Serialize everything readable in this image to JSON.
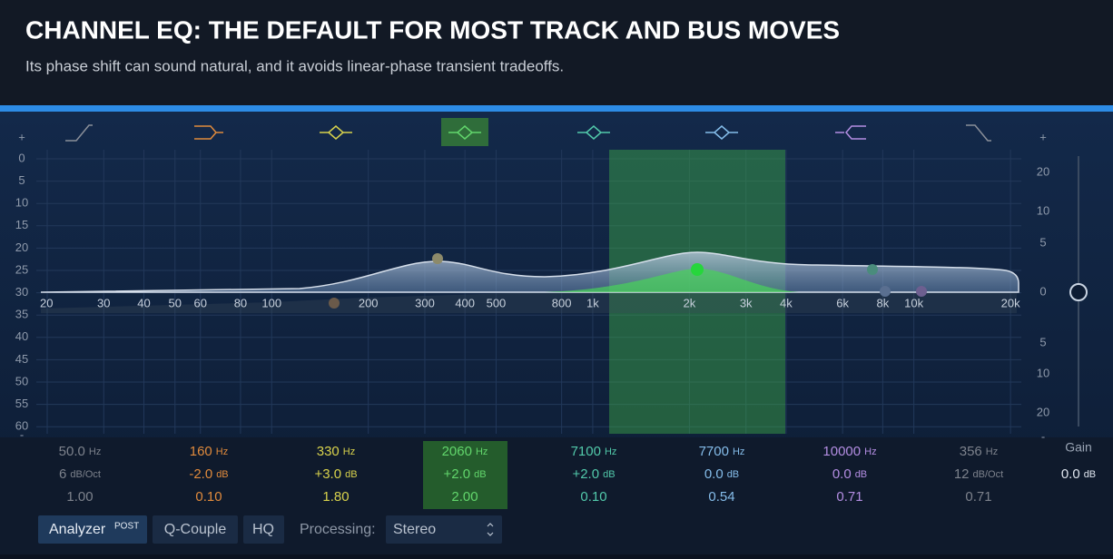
{
  "header": {
    "title": "CHANNEL EQ: THE DEFAULT FOR MOST TRACK AND BUS MOVES",
    "subtitle": "Its phase shift can sound natural, and it avoids linear-phase transient tradeoffs."
  },
  "eq": {
    "left_scale": [
      "+",
      "0",
      "5",
      "10",
      "15",
      "20",
      "25",
      "30",
      "35",
      "40",
      "45",
      "50",
      "55",
      "60",
      "-"
    ],
    "right_scale": [
      "+",
      "20",
      "10",
      "5",
      "0",
      "5",
      "10",
      "20",
      "-"
    ],
    "freq_labels": [
      "20",
      "30",
      "40",
      "50",
      "60",
      "80",
      "100",
      "200",
      "300",
      "400",
      "500",
      "800",
      "1k",
      "2k",
      "3k",
      "4k",
      "6k",
      "8k",
      "10k",
      "20k"
    ],
    "bands": [
      {
        "freq": "50.0",
        "freq_unit": "Hz",
        "gain": "6",
        "gain_unit": "dB/Oct",
        "q": "1.00",
        "color": "#7d828c"
      },
      {
        "freq": "160",
        "freq_unit": "Hz",
        "gain": "-2.0",
        "gain_unit": "dB",
        "q": "0.10",
        "color": "#e08a3c"
      },
      {
        "freq": "330",
        "freq_unit": "Hz",
        "gain": "+3.0",
        "gain_unit": "dB",
        "q": "1.80",
        "color": "#d8d24c"
      },
      {
        "freq": "2060",
        "freq_unit": "Hz",
        "gain": "+2.0",
        "gain_unit": "dB",
        "q": "2.00",
        "color": "#62d66c"
      },
      {
        "freq": "7100",
        "freq_unit": "Hz",
        "gain": "+2.0",
        "gain_unit": "dB",
        "q": "0.10",
        "color": "#52c9aa"
      },
      {
        "freq": "7700",
        "freq_unit": "Hz",
        "gain": "0.0",
        "gain_unit": "dB",
        "q": "0.54",
        "color": "#85bdea"
      },
      {
        "freq": "10000",
        "freq_unit": "Hz",
        "gain": "0.0",
        "gain_unit": "dB",
        "q": "0.71",
        "color": "#b38de2"
      },
      {
        "freq": "356",
        "freq_unit": "Hz",
        "gain": "12",
        "gain_unit": "dB/Oct",
        "q": "0.71",
        "color": "#7d828c"
      }
    ],
    "gain": {
      "label": "Gain",
      "value": "0.0",
      "unit": "dB"
    }
  },
  "toolbar": {
    "analyzer": "Analyzer",
    "post": "POST",
    "q_couple": "Q-Couple",
    "hq": "HQ",
    "processing_label": "Processing:",
    "processing_value": "Stereo"
  }
}
